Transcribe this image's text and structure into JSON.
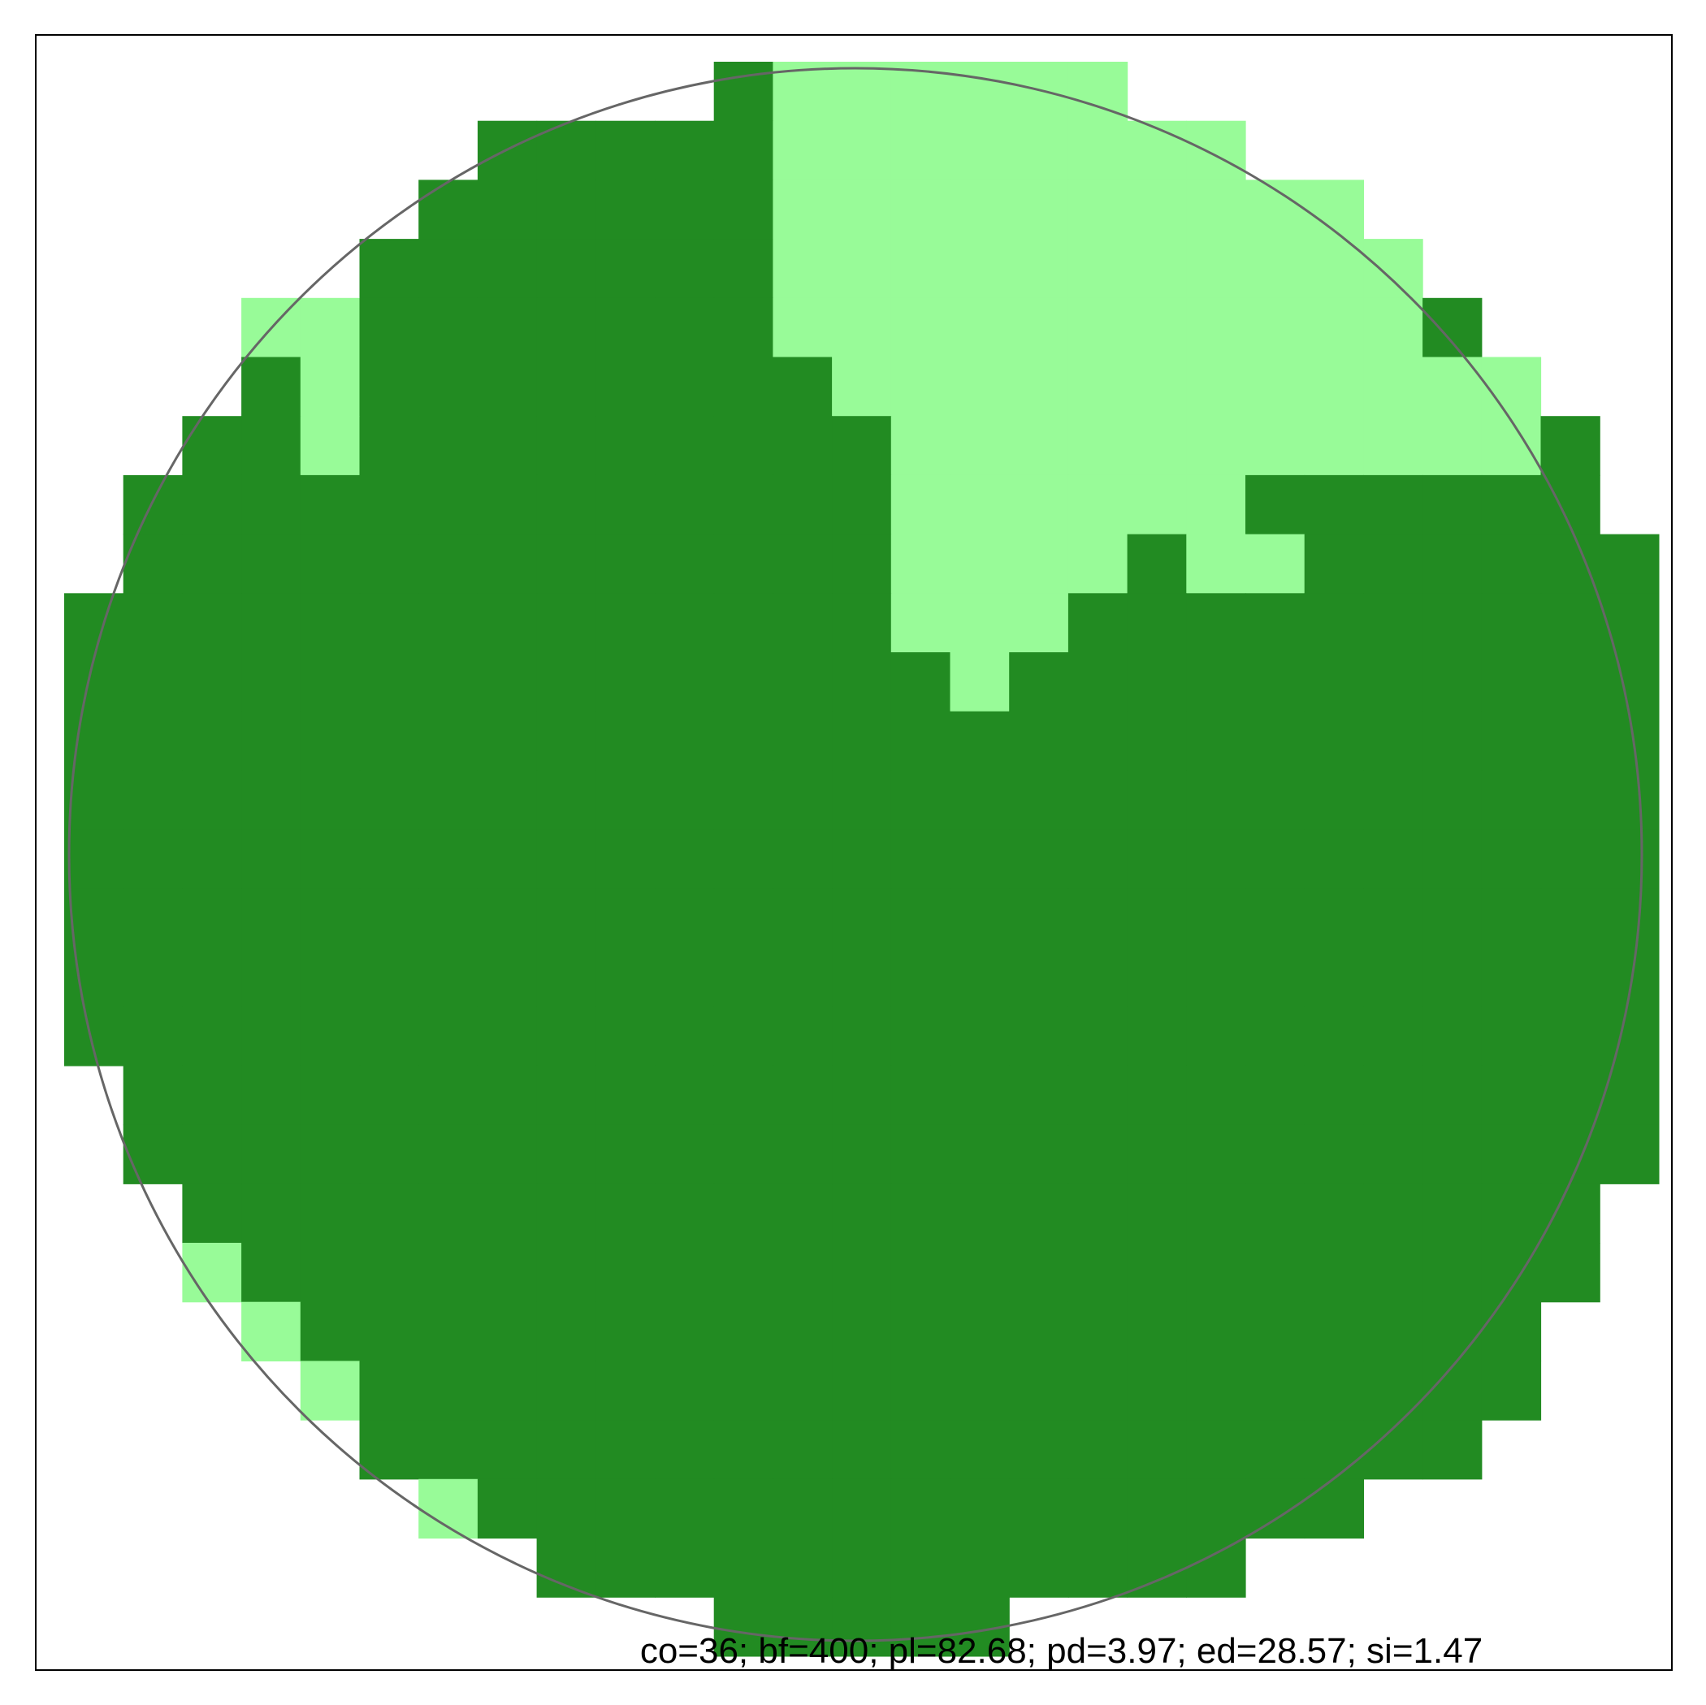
{
  "colors": {
    "habitat": "#228B22",
    "matrix": "#98FB98",
    "outline": "#666666",
    "frame": "#000000",
    "background": "#ffffff"
  },
  "grid": {
    "rows": 27,
    "cols": 27,
    "cells": [
      "...........DGGGGGG.........",
      ".......DDDDDGGGGGGGG.......",
      "......DDDDDDGGGGGGGGGG.....",
      ".....DDDDDDDGGGGGGGGGGG....",
      "...GGDDDDDDDGGGGGGGGGGGD...",
      "...DGDDDDDDDDGGGGGGGGGGGG..",
      "..DDGDDDDDDDDDGGGGGGGGGGGD.",
      ".DDDDDDDDDDDDDGGGGGGDDDDDD.",
      ".DDDDDDDDDDDDDGGGGDGGDDDDDD",
      "DDDDDDDDDDDDDDGGGDDDDDDDDDD",
      "DDDDDDDDDDDDDDDGDDDDDDDDDDD",
      "DDDDDDDDDDDDDDDDDDDDDDDDDDD",
      "DDDDDDDDDDDDDDDDDDDDDDDDDDD",
      "DDDDDDDDDDDDDDDDDDDDDDDDDDD",
      "DDDDDDDDDDDDDDDDDDDDDDDDDDD",
      "DDDDDDDDDDDDDDDDDDDDDDDDDDD",
      "DDDDDDDDDDDDDDDDDDDDDDDDDDD",
      ".DDDDDDDDDDDDDDDDDDDDDDDDDD",
      ".DDDDDDDDDDDDDDDDDDDDDDDDDD",
      "..DDDDDDDDDDDDDDDDDDDDDDDD.",
      "..GDDDDDDDDDDDDDDDDDDDDDDD.",
      "...GDDDDDDDDDDDDDDDDDDDDD..",
      "....GDDDDDDDDDDDDDDDDDDDD..",
      ".....DDDDDDDDDDDDDDDDDDD...",
      "......GDDDDDDDDDDDDDDD.....",
      "........DDDDDDDDDDDD.......",
      "...........DDDDD..........."
    ]
  },
  "metrics_label": "co=36; bf=400; pl=82.68; pd=3.97; ed=28.57; si=1.47"
}
